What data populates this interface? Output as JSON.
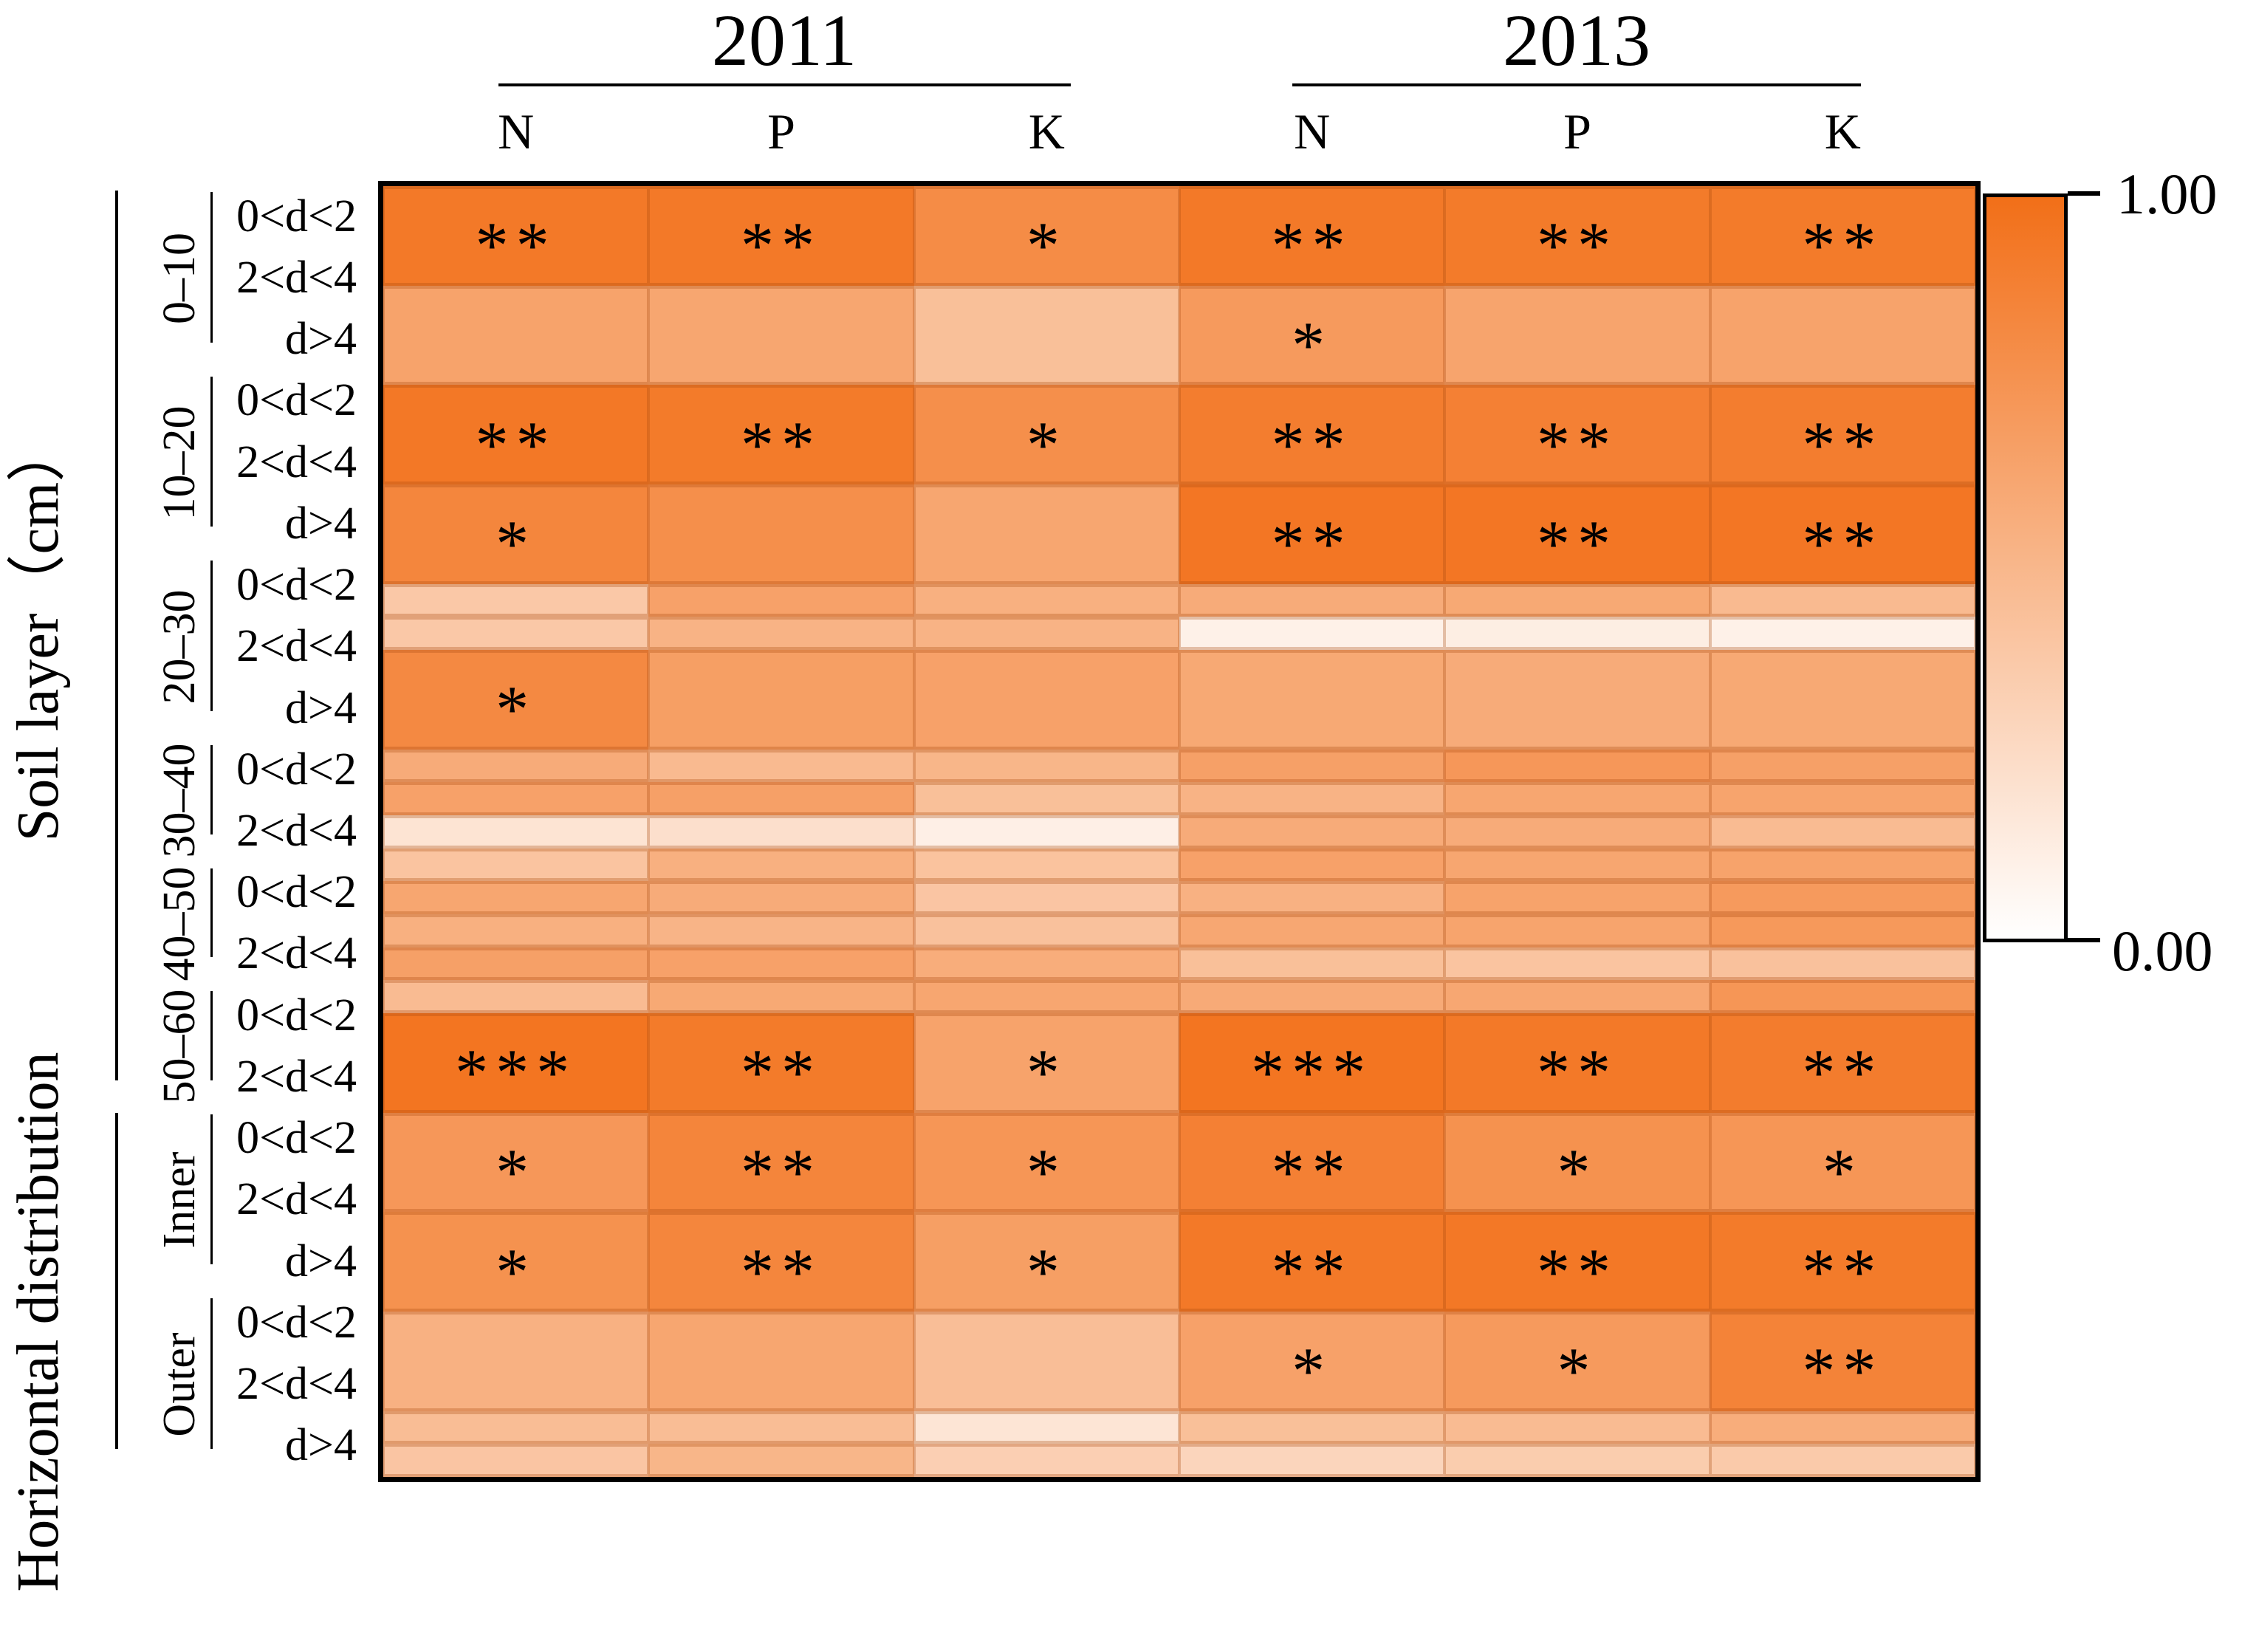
{
  "chart_data": {
    "type": "heatmap",
    "title": "",
    "value_range": [
      0,
      1
    ],
    "grid": false,
    "colormap": {
      "min_color": "#FFFFFF",
      "max_color": "#F26F18"
    },
    "colorbar": {
      "position": "right",
      "max_label": "1.00",
      "min_label": "0.00"
    },
    "column_groups": [
      {
        "label": "2011",
        "columns": [
          "N",
          "P",
          "K"
        ]
      },
      {
        "label": "2013",
        "columns": [
          "N",
          "P",
          "K"
        ]
      }
    ],
    "sections": [
      {
        "title": "Soil layer（cm）"
      },
      {
        "title": "Horizontal distribution"
      }
    ],
    "significance_symbols": [
      "*",
      "**",
      "***"
    ],
    "rows": [
      {
        "section": 0,
        "group": "0–10",
        "label": "0<d<2",
        "values": [
          0.93,
          0.93,
          0.8,
          0.93,
          0.92,
          0.92
        ],
        "sig": [
          "**",
          "**",
          "*",
          "**",
          "**",
          "**"
        ]
      },
      {
        "section": 0,
        "group": "0–10",
        "label": "2<d<4",
        "values": [
          0.64,
          0.62,
          0.44,
          0.7,
          0.63,
          0.64
        ],
        "sig": [
          "",
          "",
          "",
          "*",
          "",
          ""
        ]
      },
      {
        "section": 0,
        "group": "0–10",
        "label": "d>4",
        "values": [
          0.94,
          0.92,
          0.78,
          0.9,
          0.88,
          0.9
        ],
        "sig": [
          "**",
          "**",
          "*",
          "**",
          "**",
          "**"
        ]
      },
      {
        "section": 0,
        "group": "10–20",
        "label": "0<d<2",
        "values": [
          0.84,
          0.78,
          0.62,
          0.95,
          0.95,
          0.95
        ],
        "sig": [
          "*",
          "",
          "",
          "**",
          "**",
          "**"
        ]
      },
      {
        "section": 0,
        "group": "10–20",
        "label": "2<d<4",
        "values": [
          0.38,
          0.65,
          0.55,
          0.58,
          0.6,
          0.48
        ],
        "sig": [
          "",
          "",
          "",
          "",
          "",
          ""
        ]
      },
      {
        "section": 0,
        "group": "10–20",
        "label": "d>4",
        "values": [
          0.38,
          0.53,
          0.53,
          0.1,
          0.12,
          0.1
        ],
        "sig": [
          "",
          "",
          "",
          "",
          "",
          ""
        ]
      },
      {
        "section": 0,
        "group": "20–30",
        "label": "0<d<2",
        "values": [
          0.82,
          0.67,
          0.65,
          0.6,
          0.58,
          0.6
        ],
        "sig": [
          "*",
          "",
          "",
          "",
          "",
          ""
        ]
      },
      {
        "section": 0,
        "group": "20–30",
        "label": "2<d<4",
        "values": [
          0.58,
          0.48,
          0.51,
          0.66,
          0.72,
          0.66
        ],
        "sig": [
          "",
          "",
          "",
          "",
          "",
          ""
        ]
      },
      {
        "section": 0,
        "group": "20–30",
        "label": "d>4",
        "values": [
          0.65,
          0.66,
          0.44,
          0.53,
          0.62,
          0.63
        ],
        "sig": [
          "",
          "",
          "",
          "",
          "",
          ""
        ]
      },
      {
        "section": 0,
        "group": "30–40",
        "label": "0<d<2",
        "values": [
          0.19,
          0.22,
          0.11,
          0.58,
          0.58,
          0.47
        ],
        "sig": [
          "",
          "",
          "",
          "",
          "",
          ""
        ]
      },
      {
        "section": 0,
        "group": "30–40",
        "label": "2<d<4",
        "values": [
          0.41,
          0.55,
          0.42,
          0.65,
          0.62,
          0.64
        ],
        "sig": [
          "",
          "",
          "",
          "",
          "",
          ""
        ]
      },
      {
        "section": 0,
        "group": "40–50",
        "label": "0<d<2",
        "values": [
          0.62,
          0.58,
          0.4,
          0.54,
          0.64,
          0.7
        ],
        "sig": [
          "",
          "",
          "",
          "",
          "",
          ""
        ]
      },
      {
        "section": 0,
        "group": "40–50",
        "label": "2<d<4",
        "values": [
          0.55,
          0.52,
          0.43,
          0.61,
          0.63,
          0.71
        ],
        "sig": [
          "",
          "",
          "",
          "",
          "",
          ""
        ]
      },
      {
        "section": 0,
        "group": "50–60",
        "label": "0<d<2",
        "values": [
          0.66,
          0.65,
          0.57,
          0.44,
          0.41,
          0.43
        ],
        "sig": [
          "",
          "",
          "",
          "",
          "",
          ""
        ]
      },
      {
        "section": 0,
        "group": "50–60",
        "label": "2<d<4",
        "values": [
          0.47,
          0.6,
          0.62,
          0.59,
          0.61,
          0.73
        ],
        "sig": [
          "",
          "",
          "",
          "",
          "",
          ""
        ]
      },
      {
        "section": 1,
        "group": "Inner",
        "label": "0<d<2",
        "values": [
          0.96,
          0.92,
          0.64,
          0.96,
          0.93,
          0.91
        ],
        "sig": [
          "***",
          "**",
          "*",
          "***",
          "**",
          "**"
        ]
      },
      {
        "section": 1,
        "group": "Inner",
        "label": "2<d<4",
        "values": [
          0.72,
          0.85,
          0.73,
          0.88,
          0.76,
          0.73
        ],
        "sig": [
          "*",
          "**",
          "*",
          "**",
          "*",
          "*"
        ]
      },
      {
        "section": 1,
        "group": "Inner",
        "label": "d>4",
        "values": [
          0.76,
          0.84,
          0.67,
          0.93,
          0.94,
          0.92
        ],
        "sig": [
          "*",
          "**",
          "*",
          "**",
          "**",
          "**"
        ]
      },
      {
        "section": 1,
        "group": "Outer",
        "label": "0<d<2",
        "values": [
          0.54,
          0.62,
          0.45,
          0.65,
          0.7,
          0.86
        ],
        "sig": [
          "",
          "",
          "",
          "*",
          "*",
          "**"
        ]
      },
      {
        "section": 1,
        "group": "Outer",
        "label": "2<d<4",
        "values": [
          0.46,
          0.46,
          0.18,
          0.44,
          0.47,
          0.57
        ],
        "sig": [
          "",
          "",
          "",
          "",
          "",
          ""
        ]
      },
      {
        "section": 1,
        "group": "Outer",
        "label": "d>4",
        "values": [
          0.4,
          0.51,
          0.33,
          0.29,
          0.35,
          0.37
        ],
        "sig": [
          "",
          "",
          "",
          "",
          "",
          ""
        ]
      }
    ]
  }
}
